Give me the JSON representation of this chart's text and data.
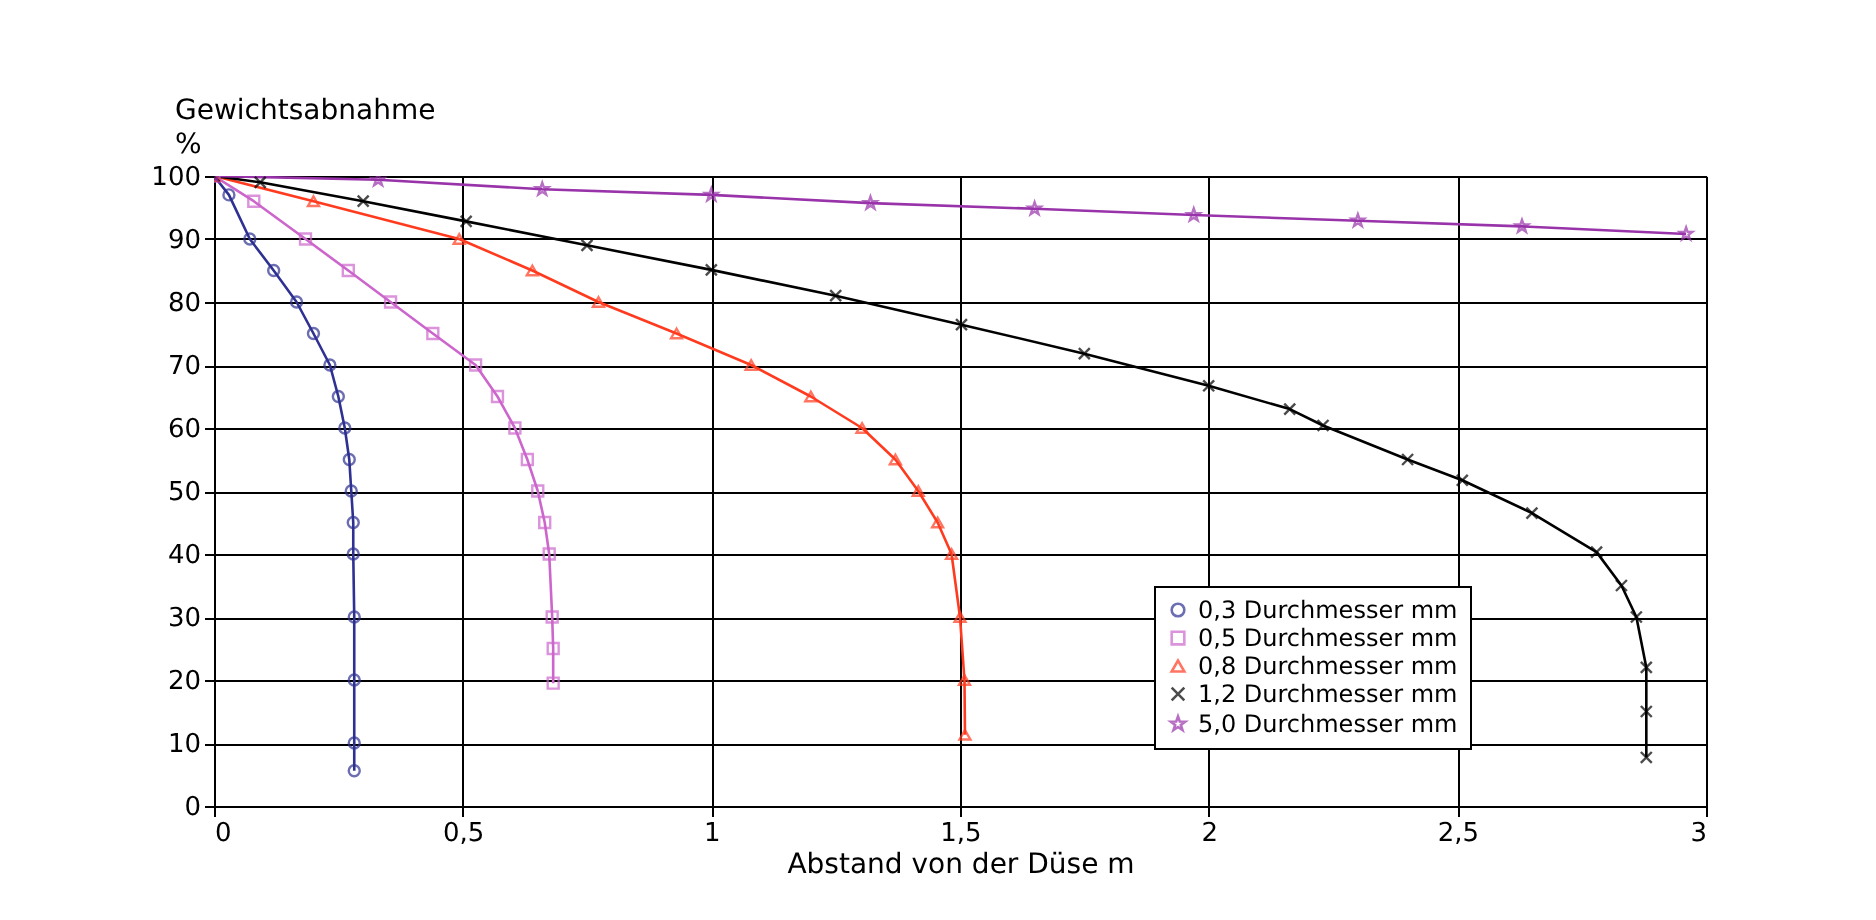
{
  "chart_data": {
    "type": "line",
    "xlabel": "Abstand von der Düse m",
    "ylabel": "Gewichtsabnahme\n%",
    "xlim": [
      0,
      3
    ],
    "ylim": [
      0,
      100
    ],
    "xticks": [
      0,
      {
        "value": 0.5,
        "label": "0,5"
      },
      1,
      {
        "value": 1.5,
        "label": "1,5"
      },
      2,
      {
        "value": 2.5,
        "label": "2,5"
      },
      3
    ],
    "yticks": [
      0,
      10,
      20,
      30,
      40,
      50,
      60,
      70,
      80,
      90,
      100
    ],
    "grid": true,
    "legend": "bottom right",
    "line_style": "solid",
    "series": [
      {
        "name": "0,3 Durchmesser mm",
        "color": "#2e3192",
        "marker": "circle",
        "x": [
          0,
          0.03,
          0.072,
          0.12,
          0.166,
          0.2,
          0.233,
          0.25,
          0.263,
          0.272,
          0.276,
          0.28,
          0.28,
          0.282,
          0.282,
          0.282,
          0.282
        ],
        "values": [
          100,
          97,
          90,
          85,
          80,
          75,
          70,
          65,
          60,
          55,
          50,
          45,
          40,
          30,
          20,
          10,
          5.6
        ]
      },
      {
        "name": "0,5 Durchmesser mm",
        "color": "#cc66cc",
        "marker": "square",
        "x": [
          0,
          0.08,
          0.184,
          0.27,
          0.355,
          0.44,
          0.526,
          0.57,
          0.605,
          0.63,
          0.651,
          0.665,
          0.674,
          0.68,
          0.682,
          0.682
        ],
        "values": [
          100,
          96,
          90,
          85,
          80,
          75,
          70,
          65,
          60,
          55,
          50,
          45,
          40,
          30,
          25,
          19.5
        ]
      },
      {
        "name": "0,8 Durchmesser mm",
        "color": "#ff3b1f",
        "marker": "triangle",
        "x": [
          0,
          0.2,
          0.493,
          0.64,
          0.773,
          0.93,
          1.08,
          1.2,
          1.303,
          1.37,
          1.416,
          1.455,
          1.483,
          1.5,
          1.509,
          1.51
        ],
        "values": [
          100,
          96,
          90,
          85,
          80,
          75,
          70,
          65,
          60,
          55,
          50,
          45,
          40,
          30,
          20,
          11.3
        ]
      },
      {
        "name": "1,2 Durchmesser mm",
        "color": "#000000",
        "marker": "cross",
        "x": [
          0,
          0.093,
          0.3,
          0.507,
          0.75,
          1.0,
          1.25,
          1.503,
          1.75,
          2.0,
          2.163,
          2.23,
          2.4,
          2.51,
          2.65,
          2.78,
          2.83,
          2.86,
          2.88,
          2.88,
          2.88
        ],
        "values": [
          100,
          99,
          96,
          92.8,
          89,
          85.1,
          81,
          76.4,
          71.8,
          66.7,
          63,
          60.4,
          55,
          51.7,
          46.5,
          40.3,
          35,
          30,
          22,
          15,
          7.7
        ]
      },
      {
        "name": "5,0 Durchmesser mm",
        "color": "#9933aa",
        "marker": "star",
        "x": [
          0,
          0.33,
          0.66,
          1.0,
          1.32,
          1.65,
          1.97,
          2.3,
          2.63,
          2.96
        ],
        "values": [
          100,
          99.4,
          97.9,
          97,
          95.7,
          94.8,
          93.8,
          92.9,
          92,
          90.8
        ]
      }
    ]
  }
}
